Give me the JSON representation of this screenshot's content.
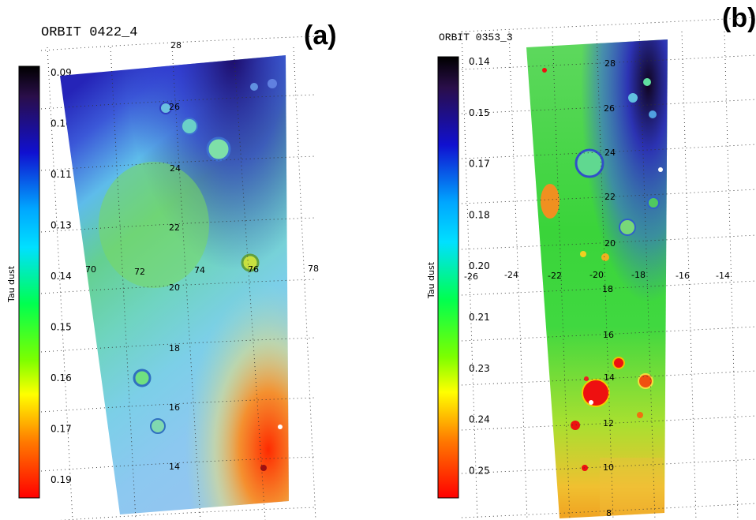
{
  "panels": [
    {
      "panel_label": "(a)",
      "orbit_title": "ORBIT 0422_4",
      "colorbar": {
        "label": "Tau dust",
        "tick_labels": [
          "0.09",
          "0.10",
          "0.11",
          "0.13",
          "0.14",
          "0.15",
          "0.16",
          "0.17",
          "0.19"
        ]
      },
      "lat_labels": [
        "28",
        "26",
        "24",
        "22",
        "20",
        "18",
        "16",
        "14"
      ],
      "lon_labels": [
        "70",
        "72",
        "74",
        "76",
        "78"
      ],
      "colors": {
        "dark_end": "#1e0b2e",
        "deep_blue": "#2323c8",
        "cyan": "#6fc6e6",
        "green": "#5ed37a",
        "orange": "#ff6a1a",
        "red": "#ff0000"
      }
    },
    {
      "panel_label": "(b)",
      "orbit_title": "ORBIT 0353_3",
      "colorbar": {
        "label": "Tau dust",
        "tick_labels": [
          "0.14",
          "0.15",
          "0.17",
          "0.18",
          "0.20",
          "0.21",
          "0.23",
          "0.24",
          "0.25"
        ]
      },
      "lat_labels": [
        "28",
        "26",
        "24",
        "22",
        "20",
        "18",
        "16",
        "14",
        "12",
        "10",
        "8"
      ],
      "lon_labels": [
        "-26",
        "-24",
        "-22",
        "-20",
        "-18",
        "-16",
        "-14"
      ],
      "colors": {
        "dark_end": "#100018",
        "deep_blue": "#3030c0",
        "green": "#3ad43a",
        "yellow": "#e8e02a",
        "red": "#ff1010"
      }
    }
  ]
}
